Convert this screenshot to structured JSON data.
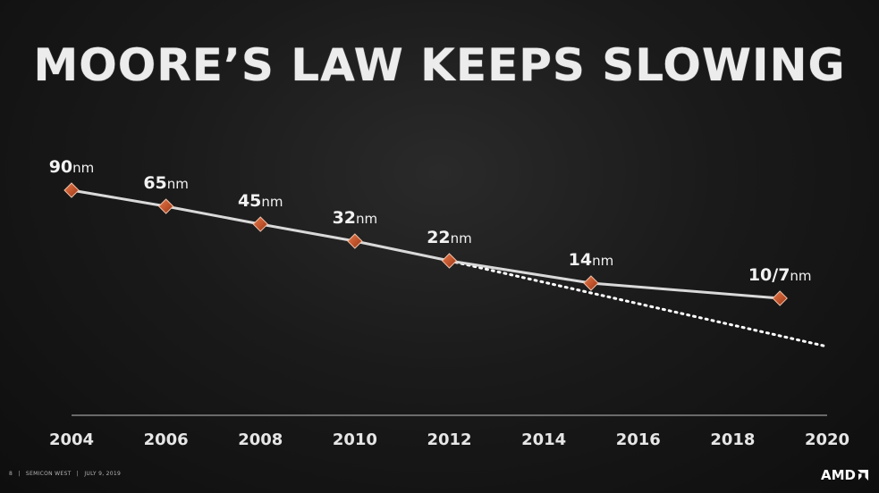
{
  "slide": {
    "title": "MOORE’S LAW KEEPS SLOWING",
    "footer": {
      "page_number": "8",
      "separator": "|",
      "event": "SEMICON WEST",
      "date": "JULY 9, 2019"
    },
    "logo_text": "AMD",
    "logo_icon": "amd-arrow-icon"
  },
  "chart_data": {
    "type": "line",
    "title": "MOORE’S LAW KEEPS SLOWING",
    "xlabel": "",
    "ylabel": "",
    "xlim": [
      2004,
      2020
    ],
    "x_ticks": [
      "2004",
      "2006",
      "2008",
      "2010",
      "2012",
      "2014",
      "2016",
      "2018",
      "2020"
    ],
    "grid": false,
    "legend": "none",
    "series": [
      {
        "points": [
          {
            "x": 2004,
            "label_num": "90",
            "label_unit": "nm"
          },
          {
            "x": 2006,
            "label_num": "65",
            "label_unit": "nm"
          },
          {
            "x": 2008,
            "label_num": "45",
            "label_unit": "nm"
          },
          {
            "x": 2010,
            "label_num": "32",
            "label_unit": "nm"
          },
          {
            "x": 2012,
            "label_num": "22",
            "label_unit": "nm"
          },
          {
            "x": 2015,
            "label_num": "14",
            "label_unit": "nm"
          },
          {
            "x": 2019,
            "label_num": "10/7",
            "label_unit": "nm"
          }
        ],
        "style": "solid",
        "color": "#d9d9d9",
        "marker_color": "#c0532b"
      },
      {
        "style": "dotted",
        "color": "#ffffff",
        "from_x": 2012,
        "to_x": 2020,
        "description_role": "trend continuation"
      }
    ]
  }
}
